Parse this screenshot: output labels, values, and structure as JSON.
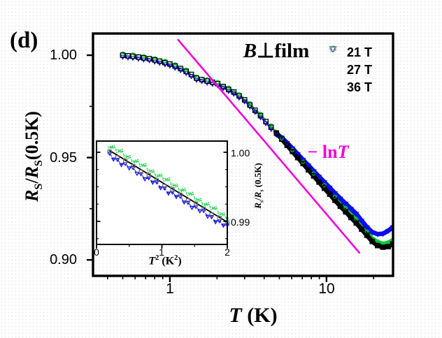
{
  "panel_label": "(d)",
  "title": {
    "b": "B",
    "perp": "⊥",
    "rest": "film"
  },
  "annotation": {
    "minus_ln": "− ln",
    "t": "T"
  },
  "legend": {
    "items": [
      {
        "label": "21 T",
        "marker": "triangle-down",
        "color": "#2a2ad8"
      },
      {
        "label": "27 T",
        "marker": "circle",
        "color": "#00bb33"
      },
      {
        "label": "36 T",
        "marker": "square",
        "color": "#a8a8a8"
      }
    ]
  },
  "main_axes": {
    "x_label": {
      "t": "T",
      "unit": " (K)"
    },
    "y_label": {
      "r": "R",
      "s": "S",
      "slash": "/",
      "r2": "R",
      "s2": "S",
      "unit": "(0.5K)"
    },
    "x_tick_labels": [
      "1",
      "10"
    ],
    "y_tick_labels": [
      "1.00",
      "0.95",
      "0.90"
    ]
  },
  "inset_axes": {
    "x_label": {
      "t": "T",
      "exp": "2",
      "mid": " (K",
      "exp2": "2",
      "end": ")"
    },
    "y_label": {
      "r": "R",
      "s": "s",
      "slash": "/",
      "r2": "R",
      "s2": "s",
      "unit": " (0.5K)"
    },
    "x_tick_labels": [
      "0",
      "1",
      "2"
    ],
    "y_tick_labels": [
      "1.00",
      "0.99"
    ]
  },
  "chart_data": [
    {
      "type": "scatter",
      "title": "B⊥film",
      "xlabel": "T (K)",
      "ylabel": "R_S/R_S(0.5K)",
      "xscale": "log",
      "xlim": [
        0.323,
        26.6
      ],
      "ylim": [
        0.8922,
        1.0106
      ],
      "x_major_ticks": [
        1,
        10
      ],
      "x_minor_ticks": [
        0.4,
        0.5,
        0.6,
        0.7,
        0.8,
        0.9,
        2,
        3,
        4,
        5,
        6,
        7,
        8,
        9,
        20
      ],
      "y_major_ticks": [
        1.0,
        0.95,
        0.9
      ],
      "y_minor_ticks": [
        0.975,
        0.925
      ],
      "grid": false,
      "legend_position": "top-right",
      "x": [
        0.5,
        0.54,
        0.58,
        0.63,
        0.68,
        0.74,
        0.8,
        0.86,
        0.93,
        1.0,
        1.08,
        1.17,
        1.27,
        1.37,
        1.48,
        1.6,
        1.73,
        1.87,
        2.02,
        2.19,
        2.37,
        2.56,
        2.77,
        3.0,
        3.24,
        3.5,
        3.79,
        4.1,
        4.43,
        4.79,
        5.18,
        5.6,
        6.06,
        6.55,
        7.08,
        7.66,
        8.28,
        8.96,
        9.69,
        10.48,
        11.33,
        12.25,
        13.25,
        14.33,
        15.49,
        16.76,
        18.12,
        19.6,
        21.19,
        22.92,
        24.78,
        26.5
      ],
      "series": [
        {
          "name": "21 T",
          "color": "#0a0af0",
          "marker": "triangle-down",
          "line": "dashed",
          "values": [
            0.9992,
            0.9989,
            0.9987,
            0.9983,
            0.9979,
            0.9975,
            0.9969,
            0.9963,
            0.9956,
            0.9949,
            0.9939,
            0.9927,
            0.9913,
            0.9898,
            0.988,
            0.9873,
            0.9866,
            0.986,
            0.9853,
            0.9839,
            0.9825,
            0.9812,
            0.9793,
            0.9774,
            0.9749,
            0.9723,
            0.9697,
            0.9668,
            0.964,
            0.9612,
            0.9598,
            0.9572,
            0.9545,
            0.9517,
            0.9489,
            0.9462,
            0.9434,
            0.9407,
            0.938,
            0.9353,
            0.9326,
            0.93,
            0.9275,
            0.925,
            0.9225,
            0.9192,
            0.916,
            0.9135,
            0.9126,
            0.9128,
            0.9142,
            0.916
          ]
        },
        {
          "name": "27 T",
          "color": "#00cc33",
          "marker": "circle",
          "line": "dashdot",
          "values": [
            1.0008,
            1.0005,
            1.0003,
            0.9999,
            0.9995,
            0.9991,
            0.9985,
            0.9979,
            0.9972,
            0.9965,
            0.9955,
            0.9943,
            0.9929,
            0.9914,
            0.9896,
            0.9889,
            0.9882,
            0.9876,
            0.9869,
            0.9855,
            0.9841,
            0.9828,
            0.9809,
            0.979,
            0.9765,
            0.9739,
            0.9713,
            0.9684,
            0.9656,
            0.9628,
            0.9594,
            0.9565,
            0.9537,
            0.9508,
            0.9479,
            0.9451,
            0.9422,
            0.9393,
            0.9365,
            0.9336,
            0.9308,
            0.928,
            0.9253,
            0.9226,
            0.92,
            0.9169,
            0.9138,
            0.9108,
            0.909,
            0.9082,
            0.9086,
            0.91
          ]
        },
        {
          "name": "36 T",
          "color": "#000000",
          "marker": "square",
          "line": "solid",
          "values": [
            1.0,
            0.9997,
            0.9995,
            0.9991,
            0.9987,
            0.9983,
            0.9977,
            0.9971,
            0.9964,
            0.9957,
            0.9947,
            0.9935,
            0.9921,
            0.9906,
            0.9888,
            0.9881,
            0.9874,
            0.9868,
            0.9861,
            0.9847,
            0.9833,
            0.982,
            0.9801,
            0.9782,
            0.9757,
            0.9731,
            0.9705,
            0.9676,
            0.9648,
            0.962,
            0.959,
            0.956,
            0.953,
            0.95,
            0.9471,
            0.944,
            0.941,
            0.938,
            0.935,
            0.9321,
            0.9291,
            0.9262,
            0.9235,
            0.9207,
            0.918,
            0.915,
            0.912,
            0.909,
            0.907,
            0.9062,
            0.9065,
            0.9078
          ]
        }
      ],
      "ref_line": {
        "label": "− lnT",
        "color": "#f300d8",
        "x": [
          1.13,
          16.2
        ],
        "y": [
          1.0075,
          0.9035
        ]
      }
    },
    {
      "type": "scatter",
      "title": "",
      "xlabel": "T^2 (K^2)",
      "ylabel": "R_s/R_s (0.5K)",
      "xscale": "linear",
      "xlim": [
        0,
        2
      ],
      "ylim": [
        0.98667,
        1.00162
      ],
      "x_major_ticks": [
        0,
        1,
        2
      ],
      "x_minor_ticks": [
        0.5,
        1.5
      ],
      "y_major_ticks": [
        1.0,
        0.99
      ],
      "y_minor_ticks": [
        0.9875,
        0.9925,
        0.995,
        0.9975
      ],
      "grid": false,
      "series": [
        {
          "name": "21 T",
          "color": "#0a0af0",
          "marker": "triangle-down",
          "line": "dashed",
          "x": [
            0.2,
            0.26,
            0.32,
            0.38,
            0.44,
            0.5,
            0.56,
            0.62,
            0.68,
            0.74,
            0.8,
            0.86,
            0.92,
            0.98,
            1.04,
            1.1,
            1.16,
            1.22,
            1.28,
            1.34,
            1.4,
            1.46,
            1.52,
            1.58,
            1.64,
            1.7,
            1.76,
            1.82,
            1.88,
            1.94,
            2.0
          ],
          "values": [
            0.99985,
            0.999,
            0.99896,
            0.99821,
            0.99837,
            0.99773,
            0.99778,
            0.99694,
            0.99689,
            0.99615,
            0.9963,
            0.99566,
            0.99571,
            0.99487,
            0.99482,
            0.99408,
            0.99423,
            0.99359,
            0.99364,
            0.9928,
            0.99275,
            0.99201,
            0.99216,
            0.99152,
            0.99157,
            0.99073,
            0.99068,
            0.98994,
            0.99009,
            0.98945,
            0.9895
          ]
        },
        {
          "name": "27 T",
          "color": "#00cc33",
          "marker": "circle",
          "line": "dashdot",
          "x": [
            0.2,
            0.26,
            0.32,
            0.38,
            0.44,
            0.5,
            0.56,
            0.62,
            0.68,
            0.74,
            0.8,
            0.86,
            0.92,
            0.98,
            1.04,
            1.1,
            1.16,
            1.22,
            1.28,
            1.34,
            1.4,
            1.46,
            1.52,
            1.58,
            1.64,
            1.7,
            1.76,
            1.82,
            1.88,
            1.94,
            2.0
          ],
          "values": [
            1.00065,
            1.0008,
            1.00016,
            1.00021,
            0.99937,
            0.99933,
            0.99858,
            0.99874,
            0.99809,
            0.99815,
            0.9973,
            0.99726,
            0.99651,
            0.99667,
            0.99602,
            0.99608,
            0.99523,
            0.99519,
            0.99444,
            0.9946,
            0.99395,
            0.99401,
            0.99316,
            0.99312,
            0.99237,
            0.99253,
            0.99188,
            0.99194,
            0.99109,
            0.99105,
            0.9903
          ]
        },
        {
          "name": "36 T",
          "color": "#707070",
          "marker": "square",
          "line": "none",
          "x": [
            0.2,
            0.32,
            0.44,
            0.56,
            0.68,
            0.8,
            0.92,
            1.04,
            1.16,
            1.28,
            1.4,
            1.52,
            1.64,
            1.76,
            1.88,
            2.0
          ],
          "values": [
            1.00005,
            0.99926,
            0.99877,
            0.99798,
            0.99719,
            0.9967,
            0.99591,
            0.99512,
            0.99463,
            0.99384,
            0.99305,
            0.99256,
            0.99177,
            0.99098,
            0.99049,
            0.9897
          ]
        }
      ],
      "fit_line": {
        "color": "#000000",
        "x": [
          0.2,
          2.0
        ],
        "y": [
          1.00025,
          0.9899
        ]
      }
    }
  ]
}
